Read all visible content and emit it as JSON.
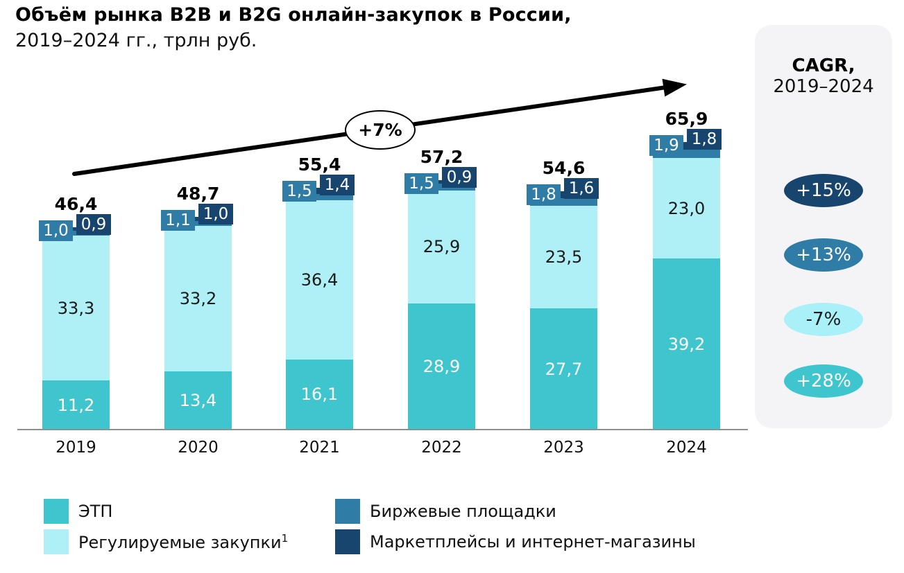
{
  "title": {
    "line1": "Объём рынка B2B и B2G онлайн-закупок в России,",
    "line2": "2019–2024 гг., трлн руб."
  },
  "trend": {
    "label": "+7%"
  },
  "cagr_panel": {
    "title": "CAGR,",
    "subtitle": "2019–2024",
    "items": [
      {
        "label": "+15%",
        "series": "Маркетплейсы и интернет-магазины",
        "color": "#17456d",
        "text_color": "#ffffff"
      },
      {
        "label": "+13%",
        "series": "Биржевые площадки",
        "color": "#2f7da6",
        "text_color": "#ffffff"
      },
      {
        "label": "-7%",
        "series": "Регулируемые закупки",
        "color": "#a9f0f8",
        "text_color": "#1a1a1a"
      },
      {
        "label": "+28%",
        "series": "ЭТП",
        "color": "#3fc5cd",
        "text_color": "#ffffff"
      }
    ]
  },
  "legend": {
    "items": [
      {
        "label": "ЭТП",
        "sup": "",
        "color": "#3fc5cd"
      },
      {
        "label": "Регулируемые закупки",
        "sup": "1",
        "color": "#aff0f7"
      },
      {
        "label": "Биржевые площадки",
        "sup": "",
        "color": "#2f7da6"
      },
      {
        "label": "Маркетплейсы и интернет-магазины",
        "sup": "",
        "color": "#17456d"
      }
    ]
  },
  "chart_data": {
    "type": "bar",
    "stacked": true,
    "grid": false,
    "legend_position": "bottom",
    "unit": "трлн руб.",
    "categories": [
      "2019",
      "2020",
      "2021",
      "2022",
      "2023",
      "2024"
    ],
    "series": [
      {
        "name": "ЭТП",
        "color": "#3fc5cd",
        "label_color": "#ffffff",
        "values": [
          11.2,
          13.4,
          16.1,
          28.9,
          27.7,
          39.2
        ],
        "labels": [
          "11,2",
          "13,4",
          "16,1",
          "28,9",
          "27,7",
          "39,2"
        ]
      },
      {
        "name": "Регулируемые закупки",
        "color": "#aff0f7",
        "label_color": "#1a1a1a",
        "values": [
          33.3,
          33.2,
          36.4,
          25.9,
          23.5,
          23.0
        ],
        "labels": [
          "33,3",
          "33,2",
          "36,4",
          "25,9",
          "23,5",
          "23,0"
        ]
      },
      {
        "name": "Биржевые площадки",
        "color": "#2f7da6",
        "label_color": "#ffffff",
        "values": [
          1.0,
          1.1,
          1.5,
          1.5,
          1.8,
          1.9
        ],
        "labels": [
          "1,0",
          "1,1",
          "1,5",
          "1,5",
          "1,8",
          "1,9"
        ]
      },
      {
        "name": "Маркетплейсы и интернет-магазины",
        "color": "#17456d",
        "label_color": "#ffffff",
        "values": [
          0.9,
          1.0,
          1.4,
          0.9,
          1.6,
          1.8
        ],
        "labels": [
          "0,9",
          "1,0",
          "1,4",
          "0,9",
          "1,6",
          "1,8"
        ]
      }
    ],
    "totals": [
      46.4,
      48.7,
      55.4,
      57.2,
      54.6,
      65.9
    ],
    "totals_labels": [
      "46,4",
      "48,7",
      "55,4",
      "57,2",
      "54,6",
      "65,9"
    ],
    "trend_annotation": "+7%"
  }
}
